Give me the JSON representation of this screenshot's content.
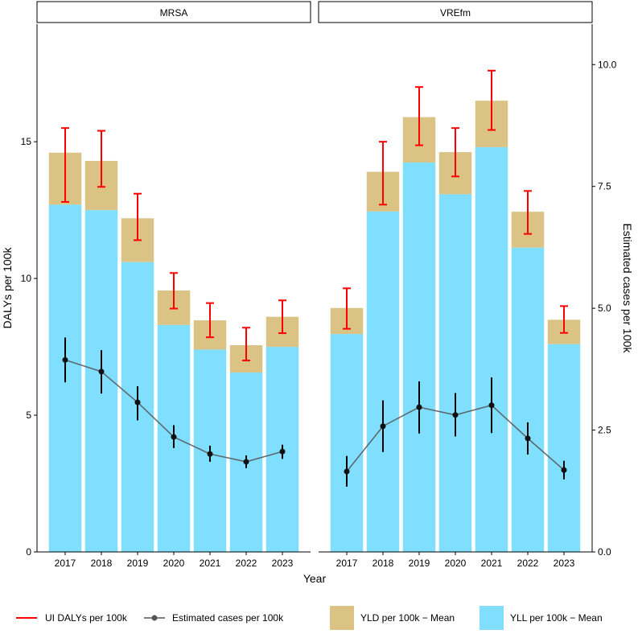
{
  "chart_data": {
    "type": "bar",
    "subtype": "stacked bar with line overlay, faceted",
    "xlabel": "Year",
    "ylabel": "DALYs per 100k",
    "ylabel_right": "Estimated cases per 100k",
    "ylim": [
      0,
      19.3
    ],
    "ylim_right": [
      0,
      10.83
    ],
    "yticks": [
      "0",
      "5",
      "10",
      "15"
    ],
    "yticks_right": [
      "0.0",
      "2.5",
      "5.0",
      "7.5",
      "10.0"
    ],
    "categories": [
      "2017",
      "2018",
      "2019",
      "2020",
      "2021",
      "2022",
      "2023"
    ],
    "legend": {
      "position": "bottom",
      "items": [
        {
          "label": "UI DALYs per 100k",
          "kind": "errorbar",
          "color": "#FF0000"
        },
        {
          "label": "Estimated cases per 100k",
          "kind": "line-point",
          "color": "#555555"
        },
        {
          "label": "YLD per 100k − Mean",
          "kind": "fill",
          "color": "#DBC386"
        },
        {
          "label": "YLL per 100k − Mean",
          "kind": "fill",
          "color": "#80DFFF"
        }
      ]
    },
    "facets": [
      {
        "title": "MRSA",
        "yll": [
          12.7,
          12.5,
          10.6,
          8.3,
          7.4,
          6.56,
          7.5
        ],
        "total_daly": [
          14.6,
          14.3,
          12.2,
          9.56,
          8.47,
          7.56,
          8.6
        ],
        "daly_ui_low": [
          12.8,
          13.35,
          11.4,
          8.9,
          7.85,
          7.0,
          8.0
        ],
        "daly_ui_high": [
          15.5,
          15.4,
          13.1,
          10.2,
          9.1,
          8.2,
          9.2
        ],
        "cases": [
          3.94,
          3.7,
          3.07,
          2.36,
          2.01,
          1.85,
          2.06
        ],
        "cases_low": [
          3.48,
          3.25,
          2.7,
          2.13,
          1.85,
          1.72,
          1.91
        ],
        "cases_high": [
          4.4,
          4.14,
          3.4,
          2.6,
          2.18,
          1.98,
          2.2
        ]
      },
      {
        "title": "VREfm",
        "yll": [
          7.97,
          12.45,
          14.24,
          13.08,
          14.8,
          11.13,
          7.6
        ],
        "total_daly": [
          8.92,
          13.9,
          15.9,
          14.62,
          16.5,
          12.44,
          8.49
        ],
        "daly_ui_low": [
          8.16,
          12.7,
          14.87,
          13.73,
          15.43,
          11.63,
          8.01
        ],
        "daly_ui_high": [
          9.64,
          15.0,
          17.0,
          15.5,
          17.6,
          13.2,
          8.99
        ],
        "cases": [
          1.65,
          2.58,
          2.97,
          2.81,
          3.01,
          2.33,
          1.68
        ],
        "cases_low": [
          1.34,
          2.05,
          2.43,
          2.37,
          2.44,
          2.0,
          1.49
        ],
        "cases_high": [
          1.97,
          3.11,
          3.5,
          3.26,
          3.58,
          2.66,
          1.87
        ]
      }
    ]
  }
}
